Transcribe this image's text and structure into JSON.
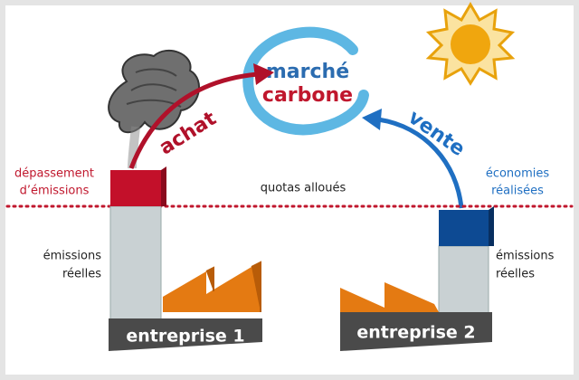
{
  "market": {
    "line1": "marché",
    "line2": "carbone"
  },
  "flows": {
    "buy": "achat",
    "sell": "vente"
  },
  "allowance": "quotas alloués",
  "company1": {
    "name": "entreprise 1",
    "excess": [
      "dépassement",
      "d’émissions"
    ],
    "actual": [
      "émissions",
      "réelles"
    ]
  },
  "company2": {
    "name": "entreprise 2",
    "savings": [
      "économies",
      "réalisées"
    ],
    "actual": [
      "émissions",
      "réelles"
    ]
  }
}
